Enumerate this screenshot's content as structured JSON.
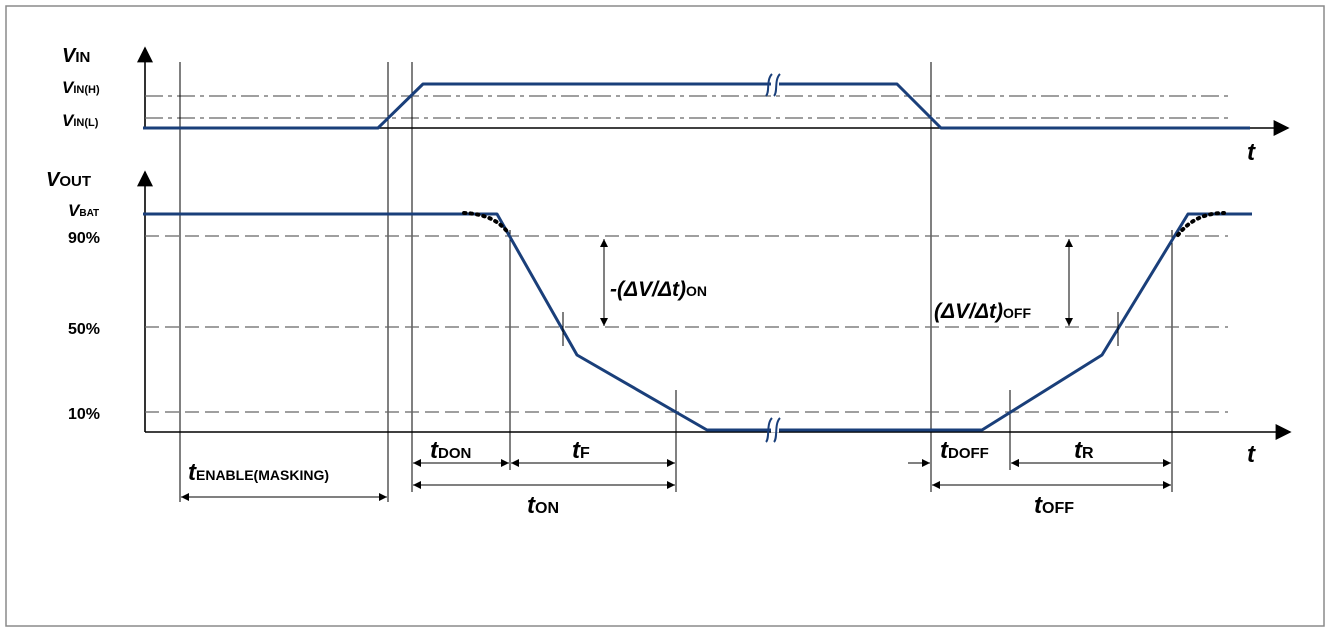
{
  "vin": {
    "v": "V",
    "in": "IN",
    "inh": "IN(H)",
    "inl": "IN(L)"
  },
  "vout": {
    "v": "V",
    "out": "OUT",
    "bat": "BAT"
  },
  "levels": {
    "p90": "90%",
    "p50": "50%",
    "p10": "10%"
  },
  "time_axis": {
    "top": "t",
    "bottom": "t"
  },
  "slope_on": {
    "prefix": "-(",
    "dv": "ΔV",
    "slash": "/",
    "dt": "Δt",
    "close": ")",
    "sub": "ON"
  },
  "slope_off": {
    "prefix": "(",
    "dv": "ΔV",
    "slash": "/",
    "dt": "Δt",
    "close": ")",
    "sub": "OFF"
  },
  "timings": {
    "t": "t",
    "enable_sub": "ENABLE(MASKING)",
    "don_sub": "DON",
    "f_sub": "F",
    "on_sub": "ON",
    "doff_sub": "DOFF",
    "r_sub": "R",
    "off_sub": "OFF"
  },
  "colors": {
    "signal": "#1a3f7a",
    "grid": "#666666",
    "frame": "#8a8a8a"
  }
}
